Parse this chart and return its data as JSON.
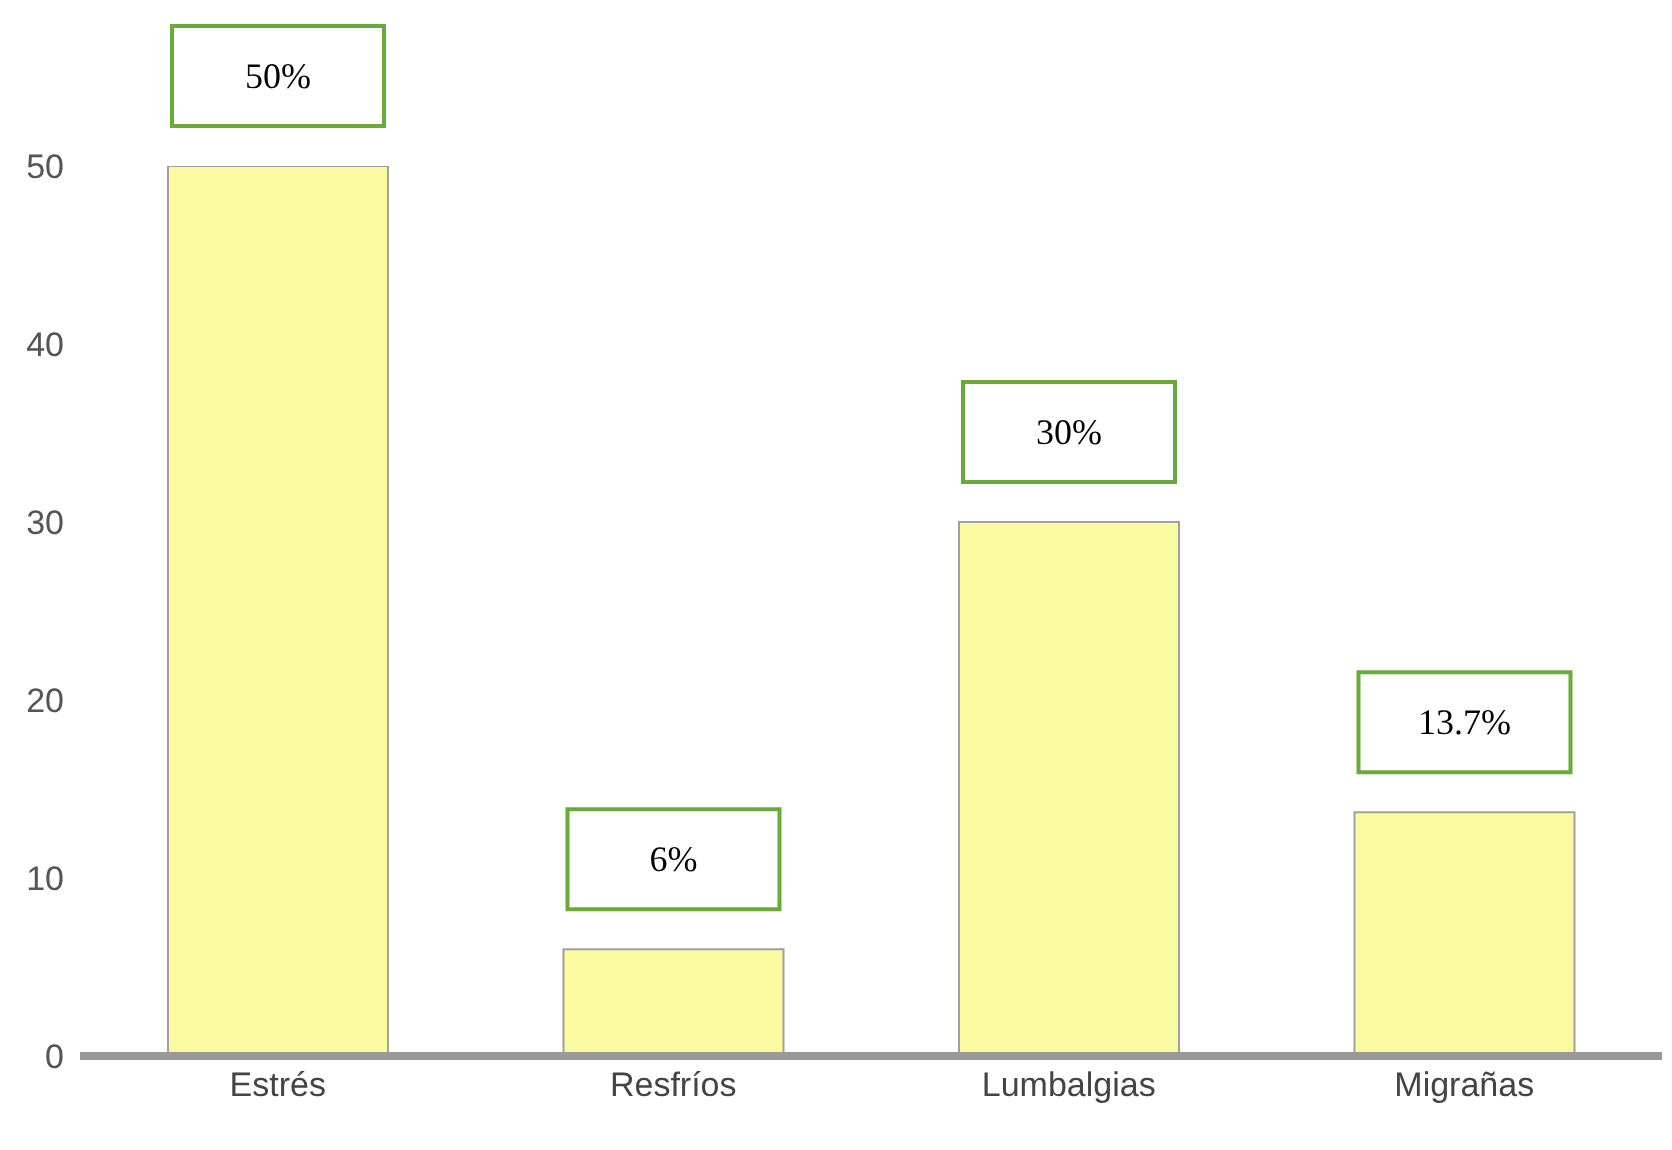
{
  "chart_data": {
    "type": "bar",
    "categories": [
      "Estrés",
      "Resfríos",
      "Lumbalgias",
      "Migrañas"
    ],
    "values": [
      50,
      6,
      30,
      13.7
    ],
    "color": "#fafaa0",
    "value_labels": [
      "50%",
      "6%",
      "30%",
      "13.7%"
    ],
    "ylim": [
      0,
      50
    ],
    "yticks": [
      0,
      10,
      20,
      30,
      40,
      50
    ]
  }
}
